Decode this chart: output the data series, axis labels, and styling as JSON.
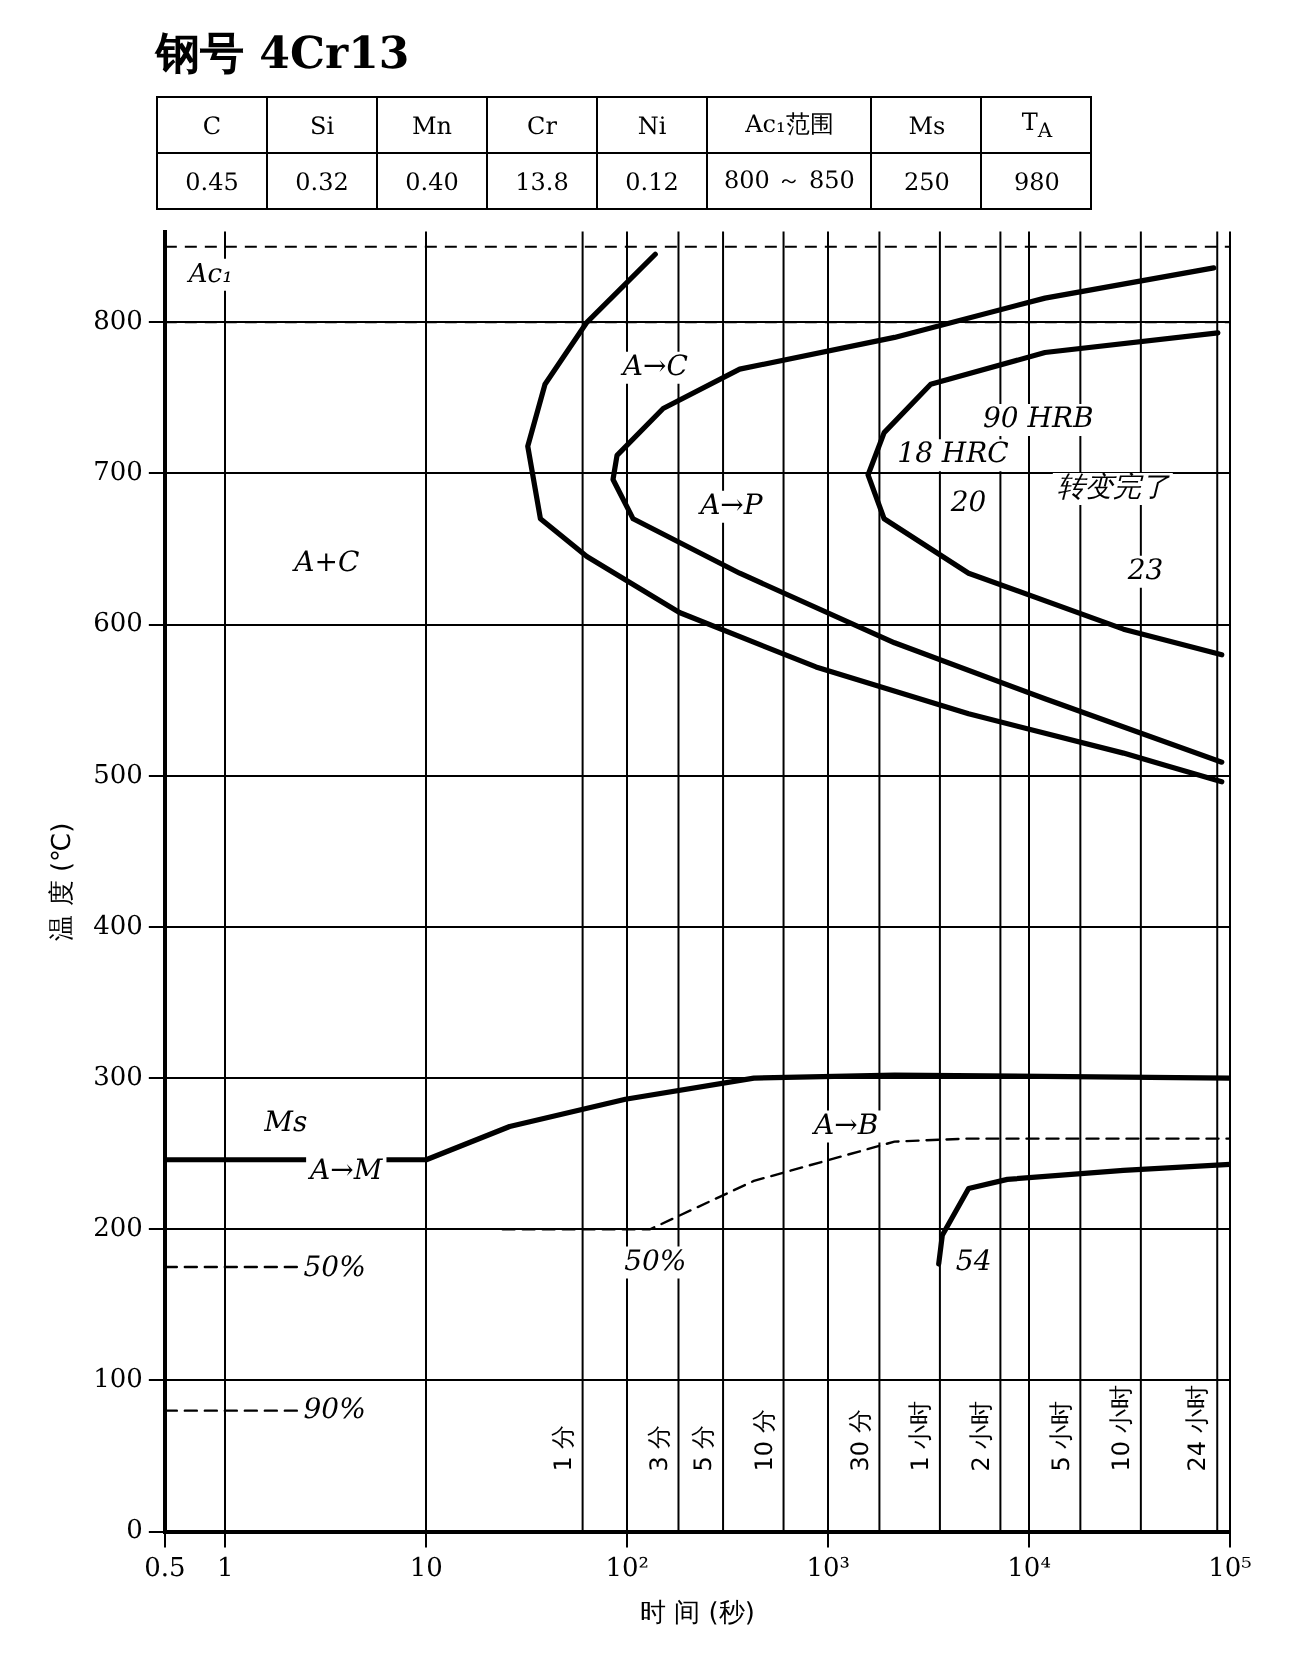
{
  "chart_data": [
    {
      "type": "other",
      "title": "钢号 4Cr13",
      "categories": [
        "C",
        "Si",
        "Mn",
        "Cr",
        "Ni",
        "Ac₁范围",
        "Ms",
        "T$_{A}$"
      ],
      "value_labels": [
        "0.45",
        "0.32",
        "0.40",
        "13.8",
        "0.12",
        "800 ～ 850",
        "250",
        "980"
      ]
    },
    {
      "type": "line",
      "xlabel": "时 间 (秒)",
      "ylabel": "温 度 (℃)",
      "log": "x",
      "xlim": [
        0.5,
        100000
      ],
      "ylim": [
        0,
        860
      ],
      "xticks": [
        0.5,
        1,
        10,
        {
          "value": 100,
          "label": "10²"
        },
        {
          "value": 1000,
          "label": "10³"
        },
        {
          "value": 10000,
          "label": "10⁴"
        },
        {
          "value": 100000,
          "label": "10⁵"
        }
      ],
      "yticks": [
        0,
        100,
        200,
        300,
        400,
        500,
        600,
        700,
        800
      ],
      "grid": true,
      "legend": false,
      "marker": "none",
      "series": [
        {
          "color": "#000000",
          "x": [
            138,
            63,
            39,
            32,
            37,
            63,
            182,
            870,
            5000,
            29500,
            91000
          ],
          "values": [
            845,
            800,
            759,
            718,
            670,
            645,
            608,
            572,
            541,
            515,
            496
          ]
        },
        {
          "color": "#000000",
          "x": [
            83000,
            12000,
            2140,
            363,
            151,
            89,
            85,
            107,
            363,
            2140,
            12000,
            91000
          ],
          "values": [
            836,
            816,
            790,
            769,
            743,
            712,
            696,
            670,
            634,
            588,
            551,
            509
          ]
        },
        {
          "color": "#000000",
          "x": [
            87000,
            12000,
            3240,
            1900,
            1580,
            1900,
            5000,
            29500,
            91000
          ],
          "values": [
            793,
            780,
            759,
            727,
            699,
            670,
            634,
            597,
            580
          ]
        },
        {
          "color": "#000000",
          "x": [
            0.5,
            10,
            26,
            98,
            427,
            2140,
            100000
          ],
          "values": [
            246,
            246,
            268,
            286,
            300,
            302,
            300
          ]
        },
        {
          "color": "#000000",
          "line_style": "dashed",
          "x": [
            24,
            130,
            427,
            2140,
            5000,
            100000
          ],
          "values": [
            200,
            200,
            232,
            258,
            260,
            260
          ]
        },
        {
          "color": "#000000",
          "x": [
            3550,
            3700,
            5000,
            7800,
            29500,
            100000
          ],
          "values": [
            177,
            196,
            227,
            233,
            239,
            243
          ]
        },
        {
          "color": "#000000",
          "line_style": "dashed",
          "x": [
            0.5,
            2.3
          ],
          "values": [
            175,
            175
          ]
        },
        {
          "color": "#000000",
          "line_style": "dashed",
          "x": [
            0.5,
            2.3
          ],
          "values": [
            80,
            80
          ]
        }
      ],
      "ref_lines": [
        {
          "axis": "y",
          "value": 850,
          "label": "Ac₁",
          "line_style": "dashed"
        },
        {
          "axis": "y",
          "value": 800,
          "line_style": "dashed"
        },
        {
          "axis": "x",
          "value": 60,
          "label": "1 分"
        },
        {
          "axis": "x",
          "value": 180,
          "label": "3 分"
        },
        {
          "axis": "x",
          "value": 300,
          "label": "5 分"
        },
        {
          "axis": "x",
          "value": 600,
          "label": "10 分"
        },
        {
          "axis": "x",
          "value": 1800,
          "label": "30 分"
        },
        {
          "axis": "x",
          "value": 3600,
          "label": "1 小时"
        },
        {
          "axis": "x",
          "value": 7200,
          "label": "2 小时"
        },
        {
          "axis": "x",
          "value": 18000,
          "label": "5 小时"
        },
        {
          "axis": "x",
          "value": 36000,
          "label": "10 小时"
        },
        {
          "axis": "x",
          "value": 86400,
          "label": "24 小时"
        }
      ],
      "annotations": [
        {
          "text": "A→C",
          "x": 138,
          "y": 770
        },
        {
          "text": "A→P",
          "x": 330,
          "y": 678
        },
        {
          "text": "A+C",
          "x": 3.2,
          "y": 640
        },
        "90 HRB",
        "18 HRC",
        {
          "text": "20",
          "x": 5000,
          "y": 680
        },
        "转变完了",
        {
          "text": "23",
          "x": 38000,
          "y": 635
        },
        {
          "text": "Ms",
          "x": 2,
          "y": 270
        },
        {
          "text": "A→M",
          "x": 4,
          "y": 238
        },
        {
          "text": "A→B",
          "x": 1230,
          "y": 268
        },
        {
          "text": "50%",
          "x": 3.5,
          "y": 174
        },
        {
          "text": "90%",
          "x": 3.5,
          "y": 80
        },
        {
          "text": "50%",
          "x": 138,
          "y": 178
        },
        {
          "text": "54",
          "x": 5300,
          "y": 178
        }
      ]
    }
  ]
}
